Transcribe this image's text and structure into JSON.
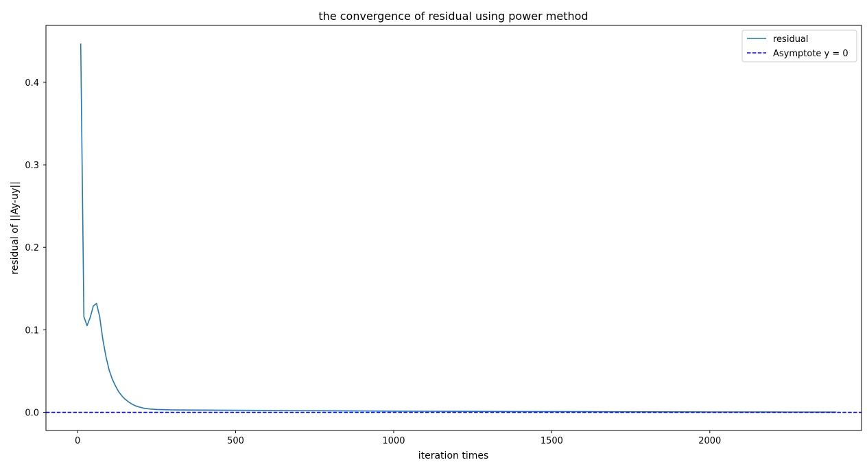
{
  "chart_data": {
    "type": "line",
    "title": "the convergence of residual using power method",
    "xlabel": "iteration times",
    "ylabel": "residual of ||Ay-uy||",
    "xlim": [
      -100,
      2480
    ],
    "ylim": [
      -0.022,
      0.469
    ],
    "xticks": [
      0,
      500,
      1000,
      1500,
      2000
    ],
    "xtick_labels": [
      "0",
      "500",
      "1000",
      "1500",
      "2000"
    ],
    "yticks": [
      0.0,
      0.1,
      0.2,
      0.3,
      0.4
    ],
    "ytick_labels": [
      "0.0",
      "0.1",
      "0.2",
      "0.3",
      "0.4"
    ],
    "grid": false,
    "legend_position": "top-right",
    "series": [
      {
        "name": "residual",
        "color": "#1f77b4",
        "style": "solid",
        "x": [
          10,
          20,
          30,
          40,
          50,
          60,
          70,
          80,
          90,
          100,
          110,
          120,
          130,
          140,
          150,
          160,
          170,
          180,
          190,
          200,
          210,
          220,
          230,
          240,
          250,
          275,
          300,
          350,
          400,
          500,
          600,
          700,
          800,
          900,
          1000,
          1200,
          1400,
          1600,
          1800,
          2000,
          2200,
          2400
        ],
        "y": [
          0.447,
          0.116,
          0.105,
          0.115,
          0.129,
          0.132,
          0.116,
          0.088,
          0.067,
          0.051,
          0.04,
          0.032,
          0.025,
          0.02,
          0.016,
          0.013,
          0.0105,
          0.0085,
          0.007,
          0.006,
          0.005,
          0.0045,
          0.004,
          0.0037,
          0.0035,
          0.0032,
          0.003,
          0.0028,
          0.0027,
          0.0025,
          0.0023,
          0.0021,
          0.0019,
          0.0017,
          0.0015,
          0.0012,
          0.001,
          0.0008,
          0.0006,
          0.0005,
          0.0004,
          0.0003
        ]
      },
      {
        "name": "Asymptote y = 0",
        "color": "#0000ff",
        "style": "dashed",
        "y_constant": 0
      }
    ]
  }
}
